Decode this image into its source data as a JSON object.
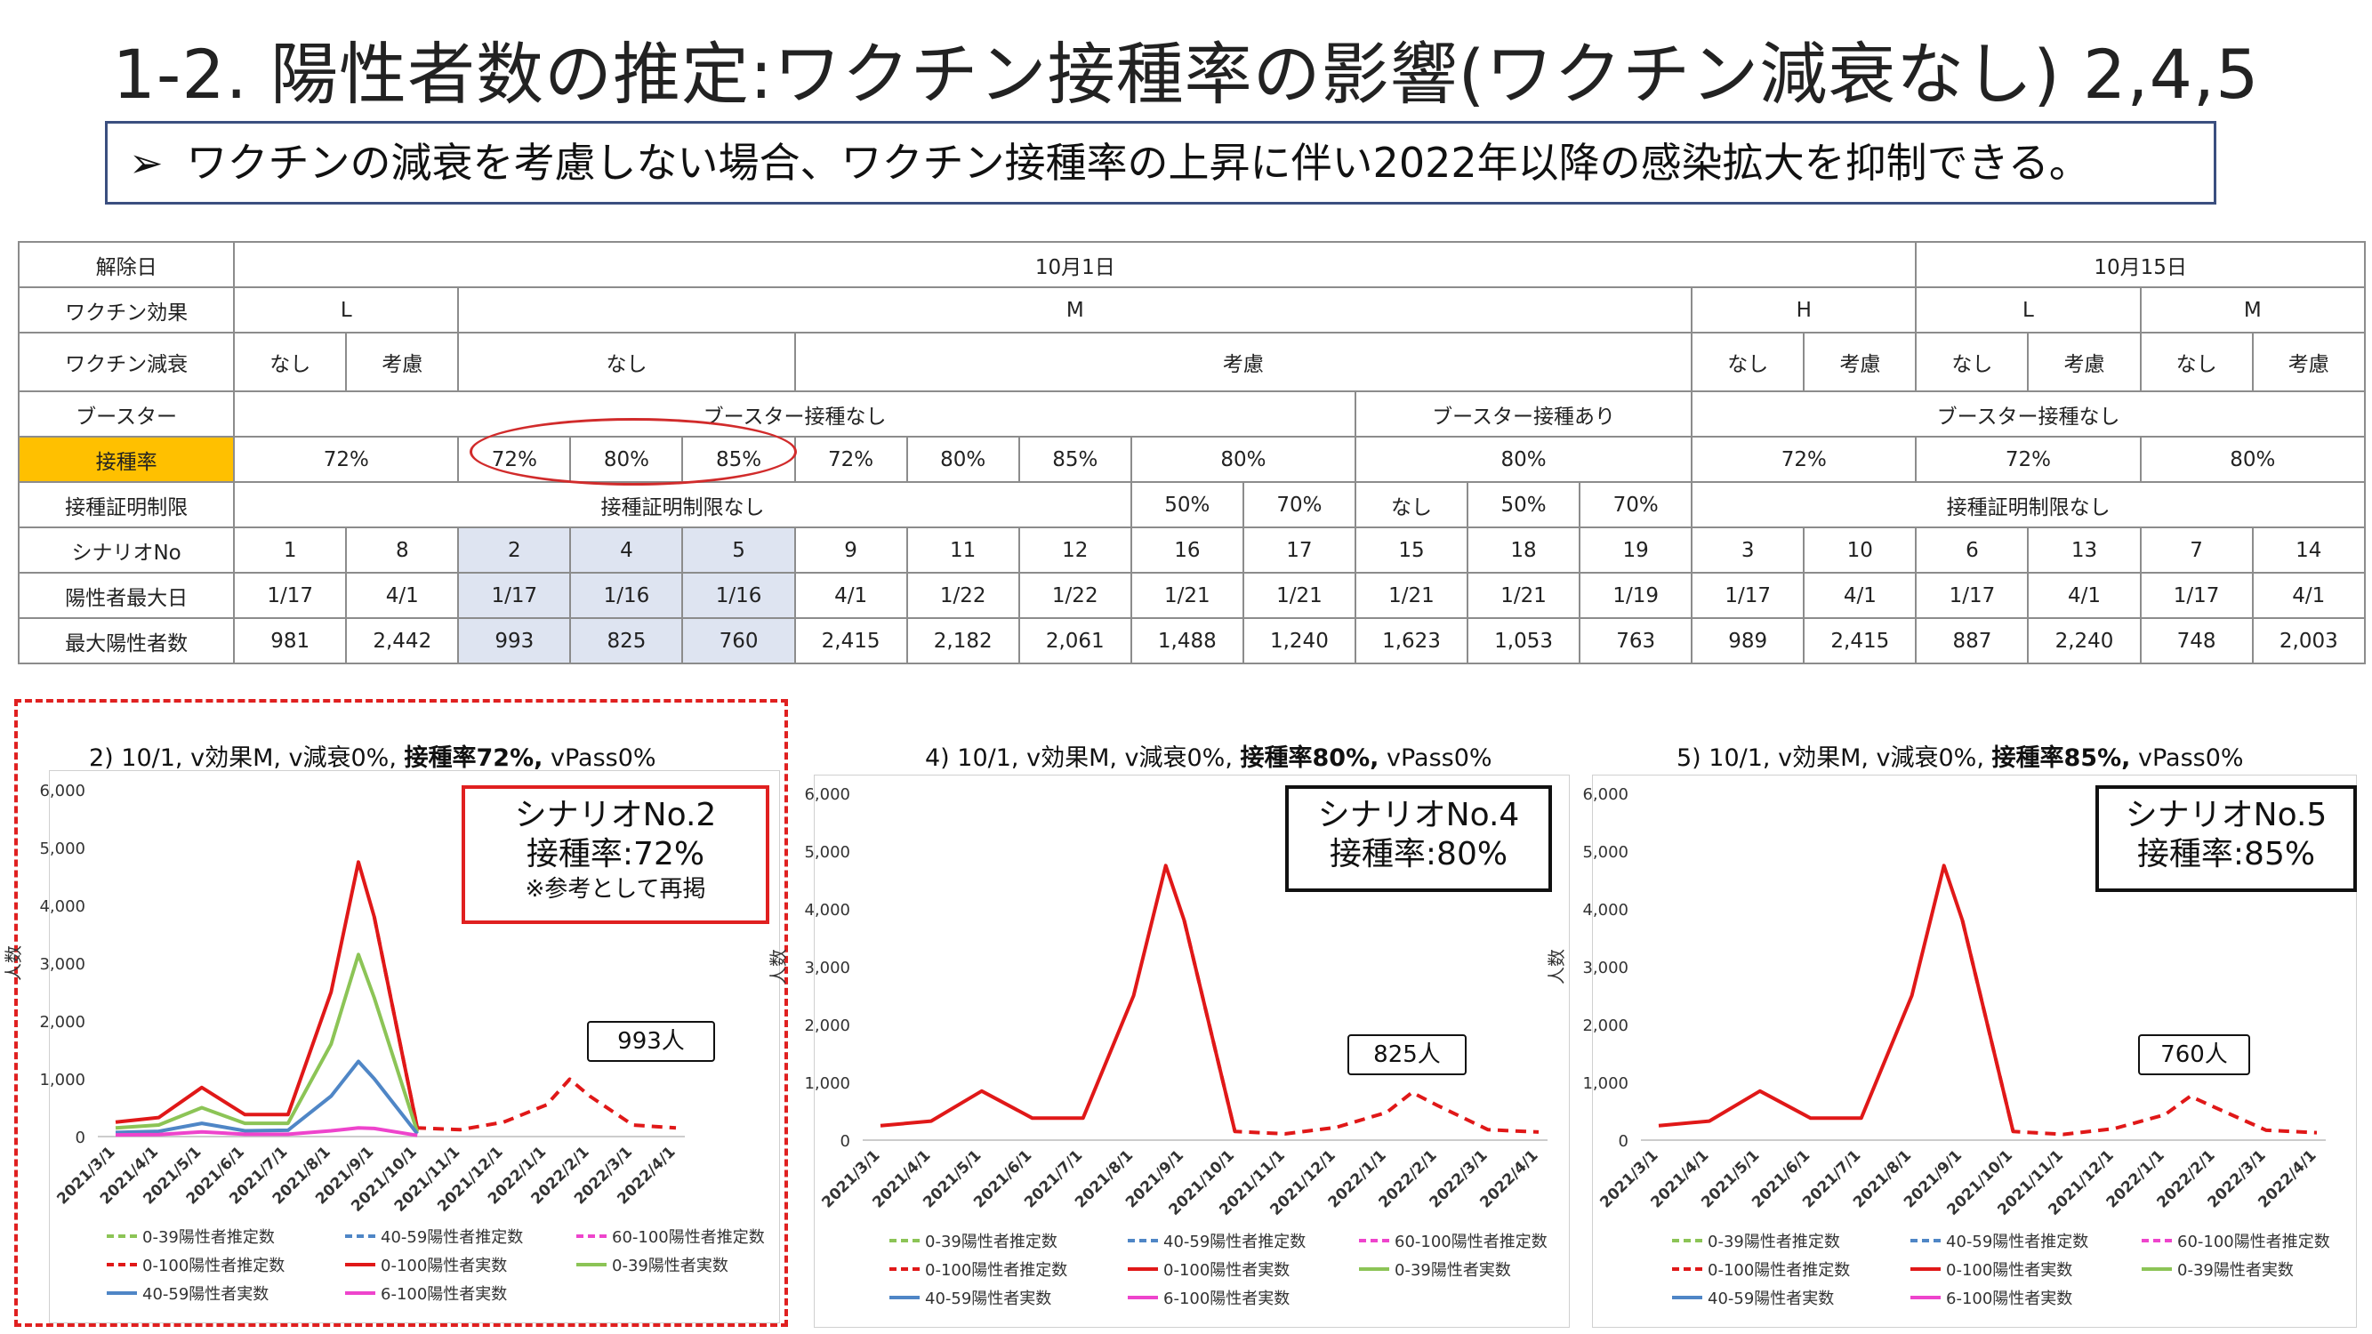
{
  "title": "1-2. 陽性者数の推定:ワクチン接種率の影響(ワクチン減衰なし) 2,4,5",
  "subtitle": {
    "bullet": "➢",
    "text": "ワクチンの減衰を考慮しない場合、ワクチン接種率の上昇に伴い2022年以降の感染拡大を抑制できる。"
  },
  "table": {
    "row_labels": {
      "release_date": "解除日",
      "vaccine_effect": "ワクチン効果",
      "vaccine_waning": "ワクチン減衰",
      "booster": "ブースター",
      "rate": "接種率",
      "certificate": "接種証明制限",
      "scenario": "シナリオNo",
      "peak_day": "陽性者最大日",
      "peak_count": "最大陽性者数"
    },
    "release": [
      "10月1日",
      "10月15日"
    ],
    "effect": [
      "L",
      "M",
      "H",
      "L",
      "M"
    ],
    "waning": [
      "なし",
      "考慮",
      "なし",
      "考慮",
      "なし",
      "考慮",
      "なし",
      "考慮",
      "なし",
      "考慮"
    ],
    "booster": [
      "ブースター接種なし",
      "ブースター接種あり",
      "ブースター接種なし"
    ],
    "rate": [
      "72%",
      "72%",
      "80%",
      "85%",
      "72%",
      "80%",
      "85%",
      "80%",
      "80%",
      "72%",
      "72%",
      "80%"
    ],
    "certificate": [
      "接種証明制限なし",
      "50%",
      "70%",
      "なし",
      "50%",
      "70%",
      "接種証明制限なし"
    ],
    "scenarios": [
      "1",
      "8",
      "2",
      "4",
      "5",
      "9",
      "11",
      "12",
      "16",
      "17",
      "15",
      "18",
      "19",
      "3",
      "10",
      "6",
      "13",
      "7",
      "14"
    ],
    "peak_days": [
      "1/17",
      "4/1",
      "1/17",
      "1/16",
      "1/16",
      "4/1",
      "1/22",
      "1/22",
      "1/21",
      "1/21",
      "1/21",
      "1/21",
      "1/19",
      "1/17",
      "4/1",
      "1/17",
      "4/1",
      "1/17",
      "4/1"
    ],
    "peak_counts": [
      "981",
      "2,442",
      "993",
      "825",
      "760",
      "2,415",
      "2,182",
      "2,061",
      "1,488",
      "1,240",
      "1,623",
      "1,053",
      "763",
      "989",
      "2,415",
      "887",
      "2,240",
      "748",
      "2,003"
    ]
  },
  "charts": [
    {
      "title_pre": "2) 10/1, v効果M, v減衰0%, ",
      "title_bold": "接種率72%,",
      "title_post": " vPass0%",
      "callout_line1": "シナリオNo.2",
      "callout_line2": "接種率:72%",
      "callout_line3": "※参考として再掲",
      "peak_label": "993人"
    },
    {
      "title_pre": "4) 10/1, v効果M, v減衰0%, ",
      "title_bold": "接種率80%,",
      "title_post": " vPass0%",
      "callout_line1": "シナリオNo.4",
      "callout_line2": "接種率:80%",
      "peak_label": "825人"
    },
    {
      "title_pre": "5) 10/1, v効果M, v減衰0%, ",
      "title_bold": "接種率85%,",
      "title_post": " vPass0%",
      "callout_line1": "シナリオNo.5",
      "callout_line2": "接種率:85%",
      "peak_label": "760人"
    }
  ],
  "chart_common": {
    "ylabel": "人数",
    "yticks": [
      "0",
      "1,000",
      "2,000",
      "3,000",
      "4,000",
      "5,000",
      "6,000"
    ],
    "xticks": [
      "2021/3/1",
      "2021/4/1",
      "2021/5/1",
      "2021/6/1",
      "2021/7/1",
      "2021/8/1",
      "2021/9/1",
      "2021/10/1",
      "2021/11/1",
      "2021/12/1",
      "2022/1/1",
      "2022/2/1",
      "2022/3/1",
      "2022/4/1"
    ],
    "legend": [
      "0-39陽性者推定数",
      "40-59陽性者推定数",
      "60-100陽性者推定数",
      "0-100陽性者推定数",
      "0-100陽性者実数",
      "0-39陽性者実数",
      "40-59陽性者実数",
      "6-100陽性者実数"
    ],
    "colors": {
      "total": "#e01818",
      "young": "#8cc456",
      "mid": "#4f86c6",
      "old": "#ee44cc"
    }
  },
  "chart_data": [
    {
      "type": "line",
      "title": "2) 10/1, v効果M, v減衰0%, 接種率72%, vPass0%",
      "ylabel": "人数",
      "ylim": [
        0,
        6000
      ],
      "x": [
        "2021/3/1",
        "2021/4/1",
        "2021/5/1",
        "2021/6/1",
        "2021/7/1",
        "2021/8/1",
        "2021/8/20",
        "2021/9/1",
        "2021/10/1",
        "2021/11/1",
        "2021/12/1",
        "2022/1/1",
        "2022/1/17",
        "2022/2/1",
        "2022/3/1",
        "2022/4/1"
      ],
      "series": [
        {
          "name": "0-100陽性者実数",
          "values": [
            250,
            330,
            850,
            380,
            380,
            2500,
            4750,
            3800,
            150,
            null,
            null,
            null,
            null,
            null,
            null,
            null
          ]
        },
        {
          "name": "0-100陽性者推定数",
          "values": [
            null,
            null,
            null,
            null,
            null,
            null,
            null,
            3800,
            150,
            120,
            250,
            550,
            993,
            700,
            200,
            150
          ]
        },
        {
          "name": "0-39陽性者実数",
          "values": [
            150,
            200,
            500,
            230,
            230,
            1600,
            3150,
            2400,
            80,
            null,
            null,
            null,
            null,
            null,
            null,
            null
          ]
        },
        {
          "name": "40-59陽性者実数",
          "values": [
            70,
            90,
            230,
            100,
            110,
            700,
            1300,
            1000,
            50,
            null,
            null,
            null,
            null,
            null,
            null,
            null
          ]
        },
        {
          "name": "6-100陽性者実数",
          "values": [
            30,
            35,
            80,
            40,
            40,
            100,
            150,
            140,
            20,
            null,
            null,
            null,
            null,
            null,
            null,
            null
          ]
        }
      ]
    },
    {
      "type": "line",
      "title": "4) 10/1, v効果M, v減衰0%, 接種率80%, vPass0%",
      "ylabel": "人数",
      "ylim": [
        0,
        6000
      ],
      "x": [
        "2021/3/1",
        "2021/4/1",
        "2021/5/1",
        "2021/6/1",
        "2021/7/1",
        "2021/8/1",
        "2021/8/20",
        "2021/9/1",
        "2021/10/1",
        "2021/11/1",
        "2021/12/1",
        "2022/1/1",
        "2022/1/16",
        "2022/2/1",
        "2022/3/1",
        "2022/4/1"
      ],
      "series": [
        {
          "name": "0-100陽性者実数",
          "values": [
            250,
            330,
            850,
            380,
            380,
            2500,
            4750,
            3800,
            150,
            null,
            null,
            null,
            null,
            null,
            null,
            null
          ]
        },
        {
          "name": "0-100陽性者推定数",
          "values": [
            null,
            null,
            null,
            null,
            null,
            null,
            null,
            3800,
            150,
            110,
            220,
            480,
            825,
            600,
            180,
            140
          ]
        }
      ]
    },
    {
      "type": "line",
      "title": "5) 10/1, v効果M, v減衰0%, 接種率85%, vPass0%",
      "ylabel": "人数",
      "ylim": [
        0,
        6000
      ],
      "x": [
        "2021/3/1",
        "2021/4/1",
        "2021/5/1",
        "2021/6/1",
        "2021/7/1",
        "2021/8/1",
        "2021/8/20",
        "2021/9/1",
        "2021/10/1",
        "2021/11/1",
        "2021/12/1",
        "2022/1/1",
        "2022/1/16",
        "2022/2/1",
        "2022/3/1",
        "2022/4/1"
      ],
      "series": [
        {
          "name": "0-100陽性者実数",
          "values": [
            250,
            330,
            850,
            380,
            380,
            2500,
            4750,
            3800,
            150,
            null,
            null,
            null,
            null,
            null,
            null,
            null
          ]
        },
        {
          "name": "0-100陽性者推定数",
          "values": [
            null,
            null,
            null,
            null,
            null,
            null,
            null,
            3800,
            150,
            100,
            200,
            440,
            760,
            560,
            170,
            130
          ]
        }
      ]
    }
  ]
}
